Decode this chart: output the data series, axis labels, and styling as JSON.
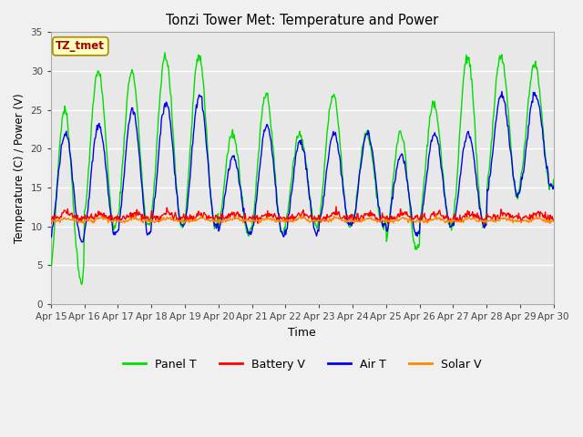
{
  "title": "Tonzi Tower Met: Temperature and Power",
  "xlabel": "Time",
  "ylabel": "Temperature (C) / Power (V)",
  "ylim": [
    0,
    35
  ],
  "yticks": [
    0,
    5,
    10,
    15,
    20,
    25,
    30,
    35
  ],
  "xtick_labels": [
    "Apr 15",
    "Apr 16",
    "Apr 17",
    "Apr 18",
    "Apr 19",
    "Apr 20",
    "Apr 21",
    "Apr 22",
    "Apr 23",
    "Apr 24",
    "Apr 25",
    "Apr 26",
    "Apr 27",
    "Apr 28",
    "Apr 29",
    "Apr 30"
  ],
  "annotation_text": "TZ_tmet",
  "annotation_box_facecolor": "#FFFFC0",
  "annotation_box_edgecolor": "#AA8800",
  "annotation_text_color": "#AA0000",
  "fig_bg_color": "#F0F0F0",
  "plot_bg_color": "#E8E8E8",
  "grid_color": "#FFFFFF",
  "colors": {
    "panel_t": "#00DD00",
    "battery_v": "#FF0000",
    "air_t": "#0000EE",
    "solar_v": "#FF8800"
  },
  "legend_labels": [
    "Panel T",
    "Battery V",
    "Air T",
    "Solar V"
  ],
  "n_days": 15,
  "pts_per_day": 48,
  "panel_t_peaks": [
    25,
    30,
    30,
    32,
    32,
    22,
    27,
    22,
    27,
    22,
    22,
    26,
    32,
    32,
    31
  ],
  "air_t_peaks": [
    22,
    23,
    25,
    26,
    27,
    19,
    23,
    21,
    22,
    22,
    19,
    22,
    22,
    27,
    27
  ],
  "panel_t_mins": [
    3,
    10,
    10,
    10,
    10,
    9,
    9,
    10,
    10,
    10,
    7,
    10,
    10,
    14,
    15
  ],
  "air_t_mins": [
    8,
    9,
    9,
    10,
    10,
    9,
    9,
    9,
    10,
    10,
    9,
    10,
    10,
    14,
    15
  ]
}
